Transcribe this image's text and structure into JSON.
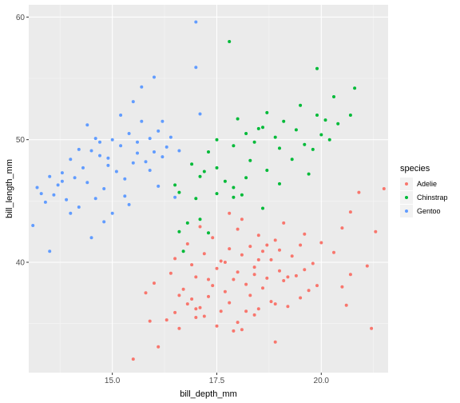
{
  "chart_data": {
    "type": "scatter",
    "xlabel": "bill_depth_mm",
    "ylabel": "bill_length_mm",
    "xlim": [
      13.0,
      21.6
    ],
    "ylim": [
      31.0,
      61.0
    ],
    "x_ticks": [
      15.0,
      17.5,
      20.0
    ],
    "x_tick_labels": [
      "15.0",
      "17.5",
      "20.0"
    ],
    "y_ticks": [
      40,
      50,
      60
    ],
    "y_tick_labels": [
      "40",
      "50",
      "60"
    ],
    "x_minor_ticks": [
      13.75,
      16.25,
      18.75,
      21.25
    ],
    "y_minor_ticks": [
      35,
      45,
      55
    ],
    "grid": true,
    "legend_position": "right",
    "legend_title": "species",
    "series": [
      {
        "name": "Adelie",
        "color": "#F8766D",
        "points": [
          [
            15.5,
            32.1
          ],
          [
            16.1,
            33.1
          ],
          [
            18.9,
            33.5
          ],
          [
            21.2,
            34.6
          ],
          [
            17.9,
            34.4
          ],
          [
            18.1,
            34.5
          ],
          [
            16.6,
            34.6
          ],
          [
            17.5,
            34.8
          ],
          [
            18.0,
            35.1
          ],
          [
            15.9,
            35.2
          ],
          [
            16.3,
            35.3
          ],
          [
            17.0,
            35.5
          ],
          [
            17.2,
            35.6
          ],
          [
            18.4,
            35.7
          ],
          [
            16.5,
            35.9
          ],
          [
            17.6,
            36.0
          ],
          [
            18.5,
            36.2
          ],
          [
            17.1,
            36.3
          ],
          [
            19.2,
            36.4
          ],
          [
            20.6,
            36.5
          ],
          [
            16.8,
            36.6
          ],
          [
            17.8,
            36.7
          ],
          [
            18.8,
            36.8
          ],
          [
            16.9,
            37.0
          ],
          [
            19.5,
            37.1
          ],
          [
            17.3,
            37.2
          ],
          [
            18.3,
            37.3
          ],
          [
            15.8,
            37.5
          ],
          [
            17.7,
            37.6
          ],
          [
            19.7,
            37.7
          ],
          [
            16.7,
            37.8
          ],
          [
            18.6,
            37.9
          ],
          [
            20.5,
            38.0
          ],
          [
            17.4,
            38.1
          ],
          [
            18.2,
            38.2
          ],
          [
            16.0,
            38.3
          ],
          [
            19.1,
            38.5
          ],
          [
            17.9,
            38.6
          ],
          [
            18.7,
            38.7
          ],
          [
            17.0,
            38.8
          ],
          [
            19.4,
            38.9
          ],
          [
            20.7,
            39.0
          ],
          [
            16.4,
            39.1
          ],
          [
            18.0,
            39.2
          ],
          [
            19.0,
            39.3
          ],
          [
            17.5,
            39.5
          ],
          [
            18.4,
            39.6
          ],
          [
            21.1,
            39.7
          ],
          [
            16.9,
            39.8
          ],
          [
            19.8,
            39.9
          ],
          [
            17.6,
            40.1
          ],
          [
            18.8,
            40.2
          ],
          [
            16.5,
            40.3
          ],
          [
            19.3,
            40.5
          ],
          [
            18.1,
            40.6
          ],
          [
            17.2,
            40.7
          ],
          [
            20.3,
            40.8
          ],
          [
            18.6,
            40.9
          ],
          [
            19.0,
            41.0
          ],
          [
            17.8,
            41.1
          ],
          [
            18.3,
            41.3
          ],
          [
            19.5,
            41.4
          ],
          [
            16.8,
            41.5
          ],
          [
            20.0,
            41.6
          ],
          [
            18.9,
            41.8
          ],
          [
            17.4,
            42.0
          ],
          [
            18.5,
            42.2
          ],
          [
            19.6,
            42.3
          ],
          [
            21.3,
            42.5
          ],
          [
            18.0,
            42.7
          ],
          [
            20.5,
            42.8
          ],
          [
            17.1,
            42.9
          ],
          [
            19.1,
            43.2
          ],
          [
            18.1,
            43.5
          ],
          [
            20.7,
            44.1
          ],
          [
            17.8,
            44.0
          ],
          [
            20.9,
            45.7
          ],
          [
            21.5,
            46.0
          ],
          [
            18.2,
            36.0
          ],
          [
            18.9,
            36.6
          ],
          [
            17.3,
            38.6
          ],
          [
            16.6,
            37.3
          ],
          [
            19.2,
            38.8
          ],
          [
            18.4,
            39.0
          ],
          [
            17.7,
            40.0
          ],
          [
            18.7,
            41.4
          ],
          [
            19.6,
            39.4
          ],
          [
            17.0,
            36.2
          ],
          [
            19.9,
            38.1
          ],
          [
            18.5,
            40.2
          ]
        ]
      },
      {
        "name": "Chinstrap",
        "color": "#00BA38",
        "points": [
          [
            16.7,
            40.9
          ],
          [
            16.6,
            42.5
          ],
          [
            17.3,
            42.4
          ],
          [
            16.8,
            43.2
          ],
          [
            17.1,
            43.5
          ],
          [
            18.6,
            44.4
          ],
          [
            17.0,
            45.2
          ],
          [
            17.5,
            45.6
          ],
          [
            18.1,
            45.5
          ],
          [
            16.6,
            45.7
          ],
          [
            17.9,
            46.1
          ],
          [
            19.0,
            46.4
          ],
          [
            17.7,
            46.6
          ],
          [
            18.2,
            46.9
          ],
          [
            17.1,
            47.0
          ],
          [
            18.7,
            47.5
          ],
          [
            17.5,
            47.7
          ],
          [
            16.9,
            48.0
          ],
          [
            19.3,
            48.4
          ],
          [
            17.3,
            49.0
          ],
          [
            19.8,
            49.2
          ],
          [
            17.9,
            49.5
          ],
          [
            19.6,
            49.6
          ],
          [
            18.4,
            49.8
          ],
          [
            20.2,
            50.0
          ],
          [
            18.9,
            50.2
          ],
          [
            20.0,
            50.4
          ],
          [
            18.2,
            50.5
          ],
          [
            19.4,
            50.8
          ],
          [
            18.6,
            51.0
          ],
          [
            20.4,
            51.3
          ],
          [
            19.1,
            51.5
          ],
          [
            18.0,
            51.7
          ],
          [
            19.9,
            52.0
          ],
          [
            18.7,
            52.2
          ],
          [
            20.7,
            52.0
          ],
          [
            19.5,
            52.8
          ],
          [
            20.3,
            53.5
          ],
          [
            19.9,
            55.8
          ],
          [
            17.8,
            58.0
          ],
          [
            20.8,
            54.2
          ],
          [
            17.5,
            50.0
          ],
          [
            18.3,
            48.3
          ],
          [
            19.7,
            47.2
          ],
          [
            16.5,
            46.3
          ],
          [
            17.9,
            45.3
          ],
          [
            19.0,
            49.3
          ],
          [
            18.5,
            50.9
          ],
          [
            20.1,
            51.6
          ],
          [
            17.2,
            47.4
          ]
        ]
      },
      {
        "name": "Gentoo",
        "color": "#619CFF",
        "points": [
          [
            13.1,
            43.0
          ],
          [
            13.2,
            46.1
          ],
          [
            13.4,
            44.9
          ],
          [
            13.5,
            47.0
          ],
          [
            13.6,
            45.5
          ],
          [
            13.7,
            46.3
          ],
          [
            13.8,
            47.3
          ],
          [
            13.9,
            45.1
          ],
          [
            14.0,
            48.4
          ],
          [
            14.1,
            46.9
          ],
          [
            14.2,
            44.5
          ],
          [
            14.3,
            47.7
          ],
          [
            14.4,
            46.5
          ],
          [
            14.5,
            49.1
          ],
          [
            14.6,
            45.2
          ],
          [
            14.7,
            48.7
          ],
          [
            14.8,
            46.0
          ],
          [
            14.9,
            48.5
          ],
          [
            15.0,
            50.0
          ],
          [
            15.1,
            47.4
          ],
          [
            15.2,
            49.5
          ],
          [
            15.3,
            46.8
          ],
          [
            15.4,
            50.5
          ],
          [
            15.5,
            48.1
          ],
          [
            15.6,
            49.8
          ],
          [
            15.7,
            51.5
          ],
          [
            15.8,
            48.2
          ],
          [
            15.9,
            50.1
          ],
          [
            16.0,
            49.0
          ],
          [
            16.1,
            50.7
          ],
          [
            16.2,
            48.6
          ],
          [
            16.3,
            49.4
          ],
          [
            16.4,
            50.2
          ],
          [
            16.5,
            45.3
          ],
          [
            14.2,
            49.2
          ],
          [
            14.8,
            43.3
          ],
          [
            15.0,
            44.0
          ],
          [
            13.5,
            40.9
          ],
          [
            14.5,
            42.0
          ],
          [
            15.2,
            52.0
          ],
          [
            15.5,
            53.1
          ],
          [
            15.7,
            54.3
          ],
          [
            16.0,
            55.1
          ],
          [
            16.2,
            51.5
          ],
          [
            17.0,
            59.6
          ],
          [
            17.0,
            55.9
          ],
          [
            17.1,
            52.1
          ],
          [
            15.3,
            45.4
          ],
          [
            14.6,
            50.1
          ],
          [
            15.9,
            47.5
          ],
          [
            14.0,
            44.0
          ],
          [
            13.8,
            46.6
          ],
          [
            14.9,
            47.9
          ],
          [
            15.6,
            48.9
          ],
          [
            14.4,
            51.2
          ],
          [
            16.1,
            46.2
          ],
          [
            13.3,
            45.6
          ],
          [
            15.4,
            44.7
          ],
          [
            16.6,
            49.1
          ],
          [
            14.7,
            49.8
          ]
        ]
      }
    ]
  }
}
